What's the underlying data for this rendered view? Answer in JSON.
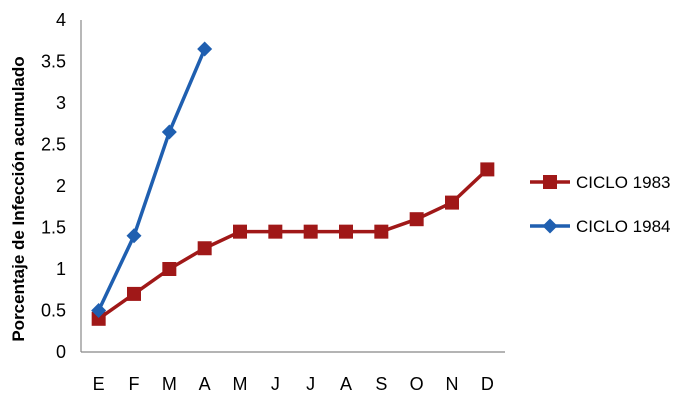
{
  "chart_data": {
    "type": "line",
    "categories": [
      "E",
      "F",
      "M",
      "A",
      "M",
      "J",
      "J",
      "A",
      "S",
      "O",
      "N",
      "D"
    ],
    "series": [
      {
        "name": "CICLO 1983",
        "color": "#a01818",
        "marker": "square",
        "values": [
          0.4,
          0.7,
          1.0,
          1.25,
          1.45,
          1.45,
          1.45,
          1.45,
          1.45,
          1.6,
          1.8,
          2.2
        ]
      },
      {
        "name": "CICLO 1984",
        "color": "#1f5fb0",
        "marker": "diamond",
        "values": [
          0.5,
          1.4,
          2.65,
          3.65,
          null,
          null,
          null,
          null,
          null,
          null,
          null,
          null
        ]
      }
    ],
    "ylabel": "Porcentaje de Infección acumulado",
    "xlabel": "",
    "ylim": [
      0,
      4
    ],
    "yticks": [
      "0",
      "0.5",
      "1",
      "1.5",
      "2",
      "2.5",
      "3",
      "3.5",
      "4"
    ],
    "grid": false,
    "legend_position": "right"
  }
}
